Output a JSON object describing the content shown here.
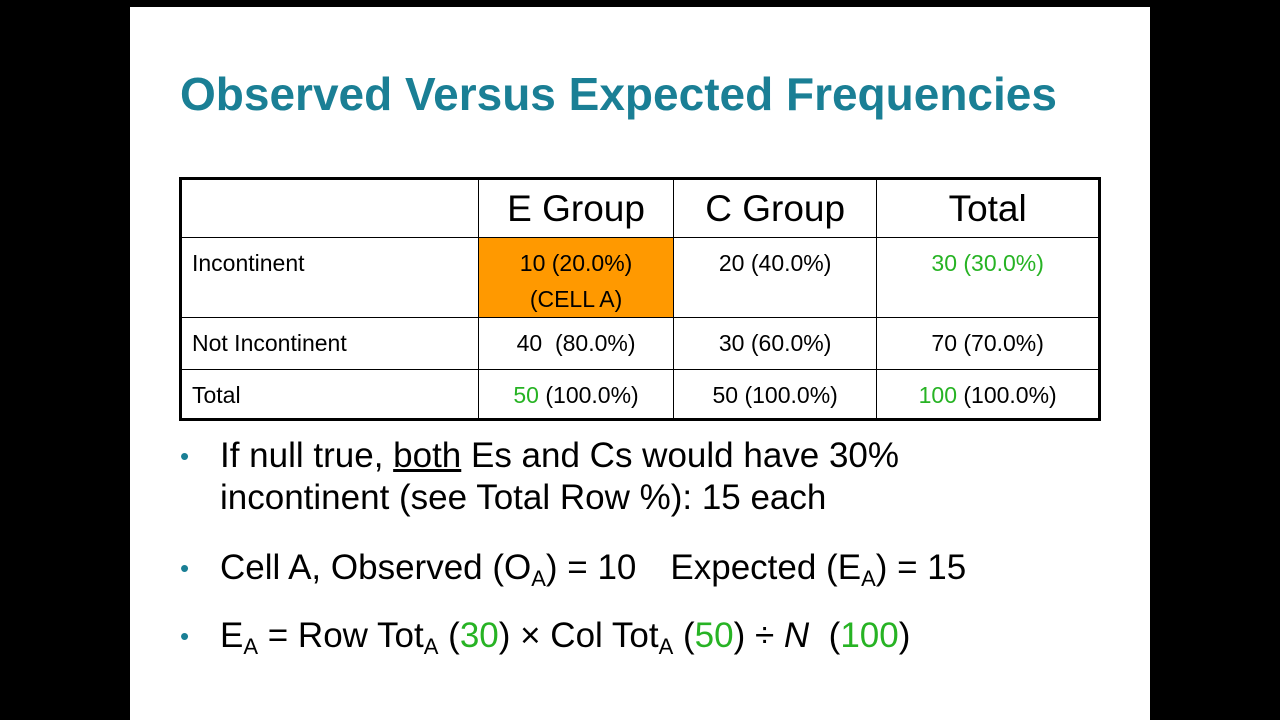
{
  "slide": {
    "title": "Observed Versus Expected Frequencies"
  },
  "table": {
    "headers": [
      "",
      "E Group",
      "C Group",
      "Total"
    ],
    "rows": [
      {
        "label": "Incontinent",
        "e_group": "10 (20.0%)",
        "e_group_note": "(CELL A)",
        "c_group": "20 (40.0%)",
        "total": "30 (30.0%)"
      },
      {
        "label": "Not Incontinent",
        "e_group": "40  (80.0%)",
        "c_group": "30 (60.0%)",
        "total": "70 (70.0%)"
      },
      {
        "label": "Total",
        "e_group_count": "50",
        "e_group_pct": " (100.0%)",
        "c_group": "50 (100.0%)",
        "total_count": "100",
        "total_pct": " (100.0%)"
      }
    ]
  },
  "bullets": {
    "b1_pre": "If null true, ",
    "b1_underlined": "both",
    "b1_post": " Es and Cs would have 30%",
    "b1_line2": "incontinent (see Total Row %): 15 each",
    "b2_a": "Cell A, Observed (O",
    "b2_sub1": "A",
    "b2_b": ") = 10",
    "b2_c": "Expected (E",
    "b2_sub2": "A",
    "b2_d": ") = 15",
    "b3_e": "E",
    "b3_sub1": "A",
    "b3_row": " = Row Tot",
    "b3_sub2": "A",
    "b3_open1": " (",
    "b3_v1": "30",
    "b3_times": ") × Col Tot",
    "b3_sub3": "A",
    "b3_open2": " (",
    "b3_v2": "50",
    "b3_div": ") ÷ ",
    "b3_n": "N",
    "b3_open3": "  (",
    "b3_v3": "100",
    "b3_close": ")"
  },
  "colors": {
    "title": "#1a7f95",
    "highlight": "#ff9900",
    "green": "#27b324",
    "bullet": "#1a7f95"
  }
}
